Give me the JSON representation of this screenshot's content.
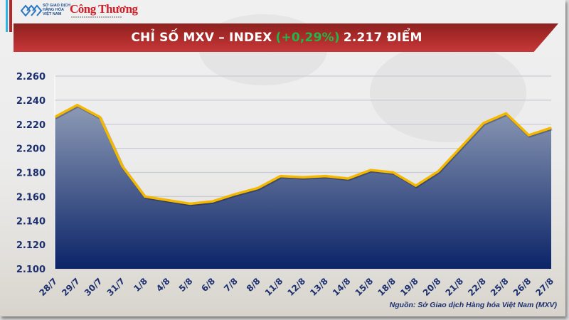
{
  "header": {
    "logo_mxv_text": [
      "SỞ GIAO DỊCH",
      "HÀNG HÓA",
      "VIỆT NAM"
    ],
    "logo_publisher": "Công Thương"
  },
  "banner": {
    "title_prefix": "CHỈ SỐ MXV – INDEX",
    "change_pct": "(+0,29%)",
    "title_suffix": "2.217 ĐIỂM",
    "colors": {
      "banner": "#a82a28",
      "change": "#1fb84a",
      "text": "#ffffff"
    }
  },
  "source": "Nguồn: Sở Giao dịch Hàng hóa Việt Nam (MXV)",
  "colors": {
    "line": "#f5b800",
    "area_top": "#8e9bb6",
    "area_bottom": "#0b2468",
    "axis_text": "#1c2f6e",
    "grid": "#c9ccd4"
  },
  "chart_data": {
    "type": "area",
    "title": "CHỈ SỐ MXV – INDEX (+0,29%) 2.217 ĐIỂM",
    "xlabel": "",
    "ylabel": "",
    "categories": [
      "28/7",
      "29/7",
      "30/7",
      "31/7",
      "1/8",
      "4/8",
      "5/8",
      "6/8",
      "7/8",
      "8/8",
      "11/8",
      "12/8",
      "13/8",
      "14/8",
      "15/8",
      "18/8",
      "19/8",
      "20/8",
      "21/8",
      "22/8",
      "25/8",
      "26/8",
      "27/8"
    ],
    "series": [
      {
        "name": "MXV-Index",
        "values": [
          2226,
          2236,
          2226,
          2185,
          2160,
          2157,
          2154,
          2156,
          2162,
          2167,
          2177,
          2176,
          2177,
          2175,
          2182,
          2180,
          2169,
          2181,
          2201,
          2221,
          2229,
          2211,
          2217
        ]
      }
    ],
    "ylim": [
      2100,
      2260
    ],
    "yticks": [
      2100,
      2120,
      2140,
      2160,
      2180,
      2200,
      2220,
      2240,
      2260
    ],
    "ytick_labels": [
      "2.100",
      "2.120",
      "2.140",
      "2.160",
      "2.180",
      "2.200",
      "2.220",
      "2.240",
      "2.260"
    ],
    "grid": true,
    "legend": "none",
    "x_label_rotation": -45
  }
}
